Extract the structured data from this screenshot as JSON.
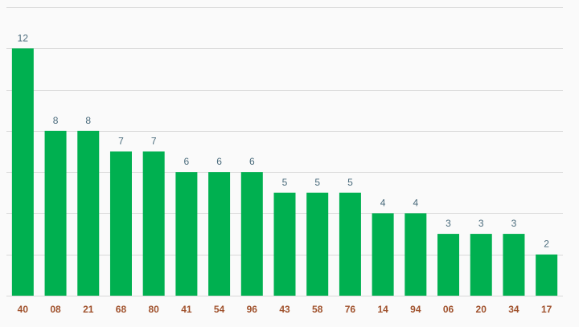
{
  "chart_data": {
    "type": "bar",
    "categories": [
      "40",
      "08",
      "21",
      "68",
      "80",
      "41",
      "54",
      "96",
      "43",
      "58",
      "76",
      "14",
      "94",
      "06",
      "20",
      "34",
      "17"
    ],
    "values": [
      12,
      8,
      8,
      7,
      7,
      6,
      6,
      6,
      5,
      5,
      5,
      4,
      4,
      3,
      3,
      3,
      2
    ],
    "title": "",
    "xlabel": "",
    "ylabel": "",
    "ylim": [
      0,
      14
    ],
    "grid": true,
    "bar_color": "#00b050",
    "value_label_color": "#4a6b7c",
    "category_label_color": "#a0522d",
    "grid_color": "#d9d9d9"
  }
}
